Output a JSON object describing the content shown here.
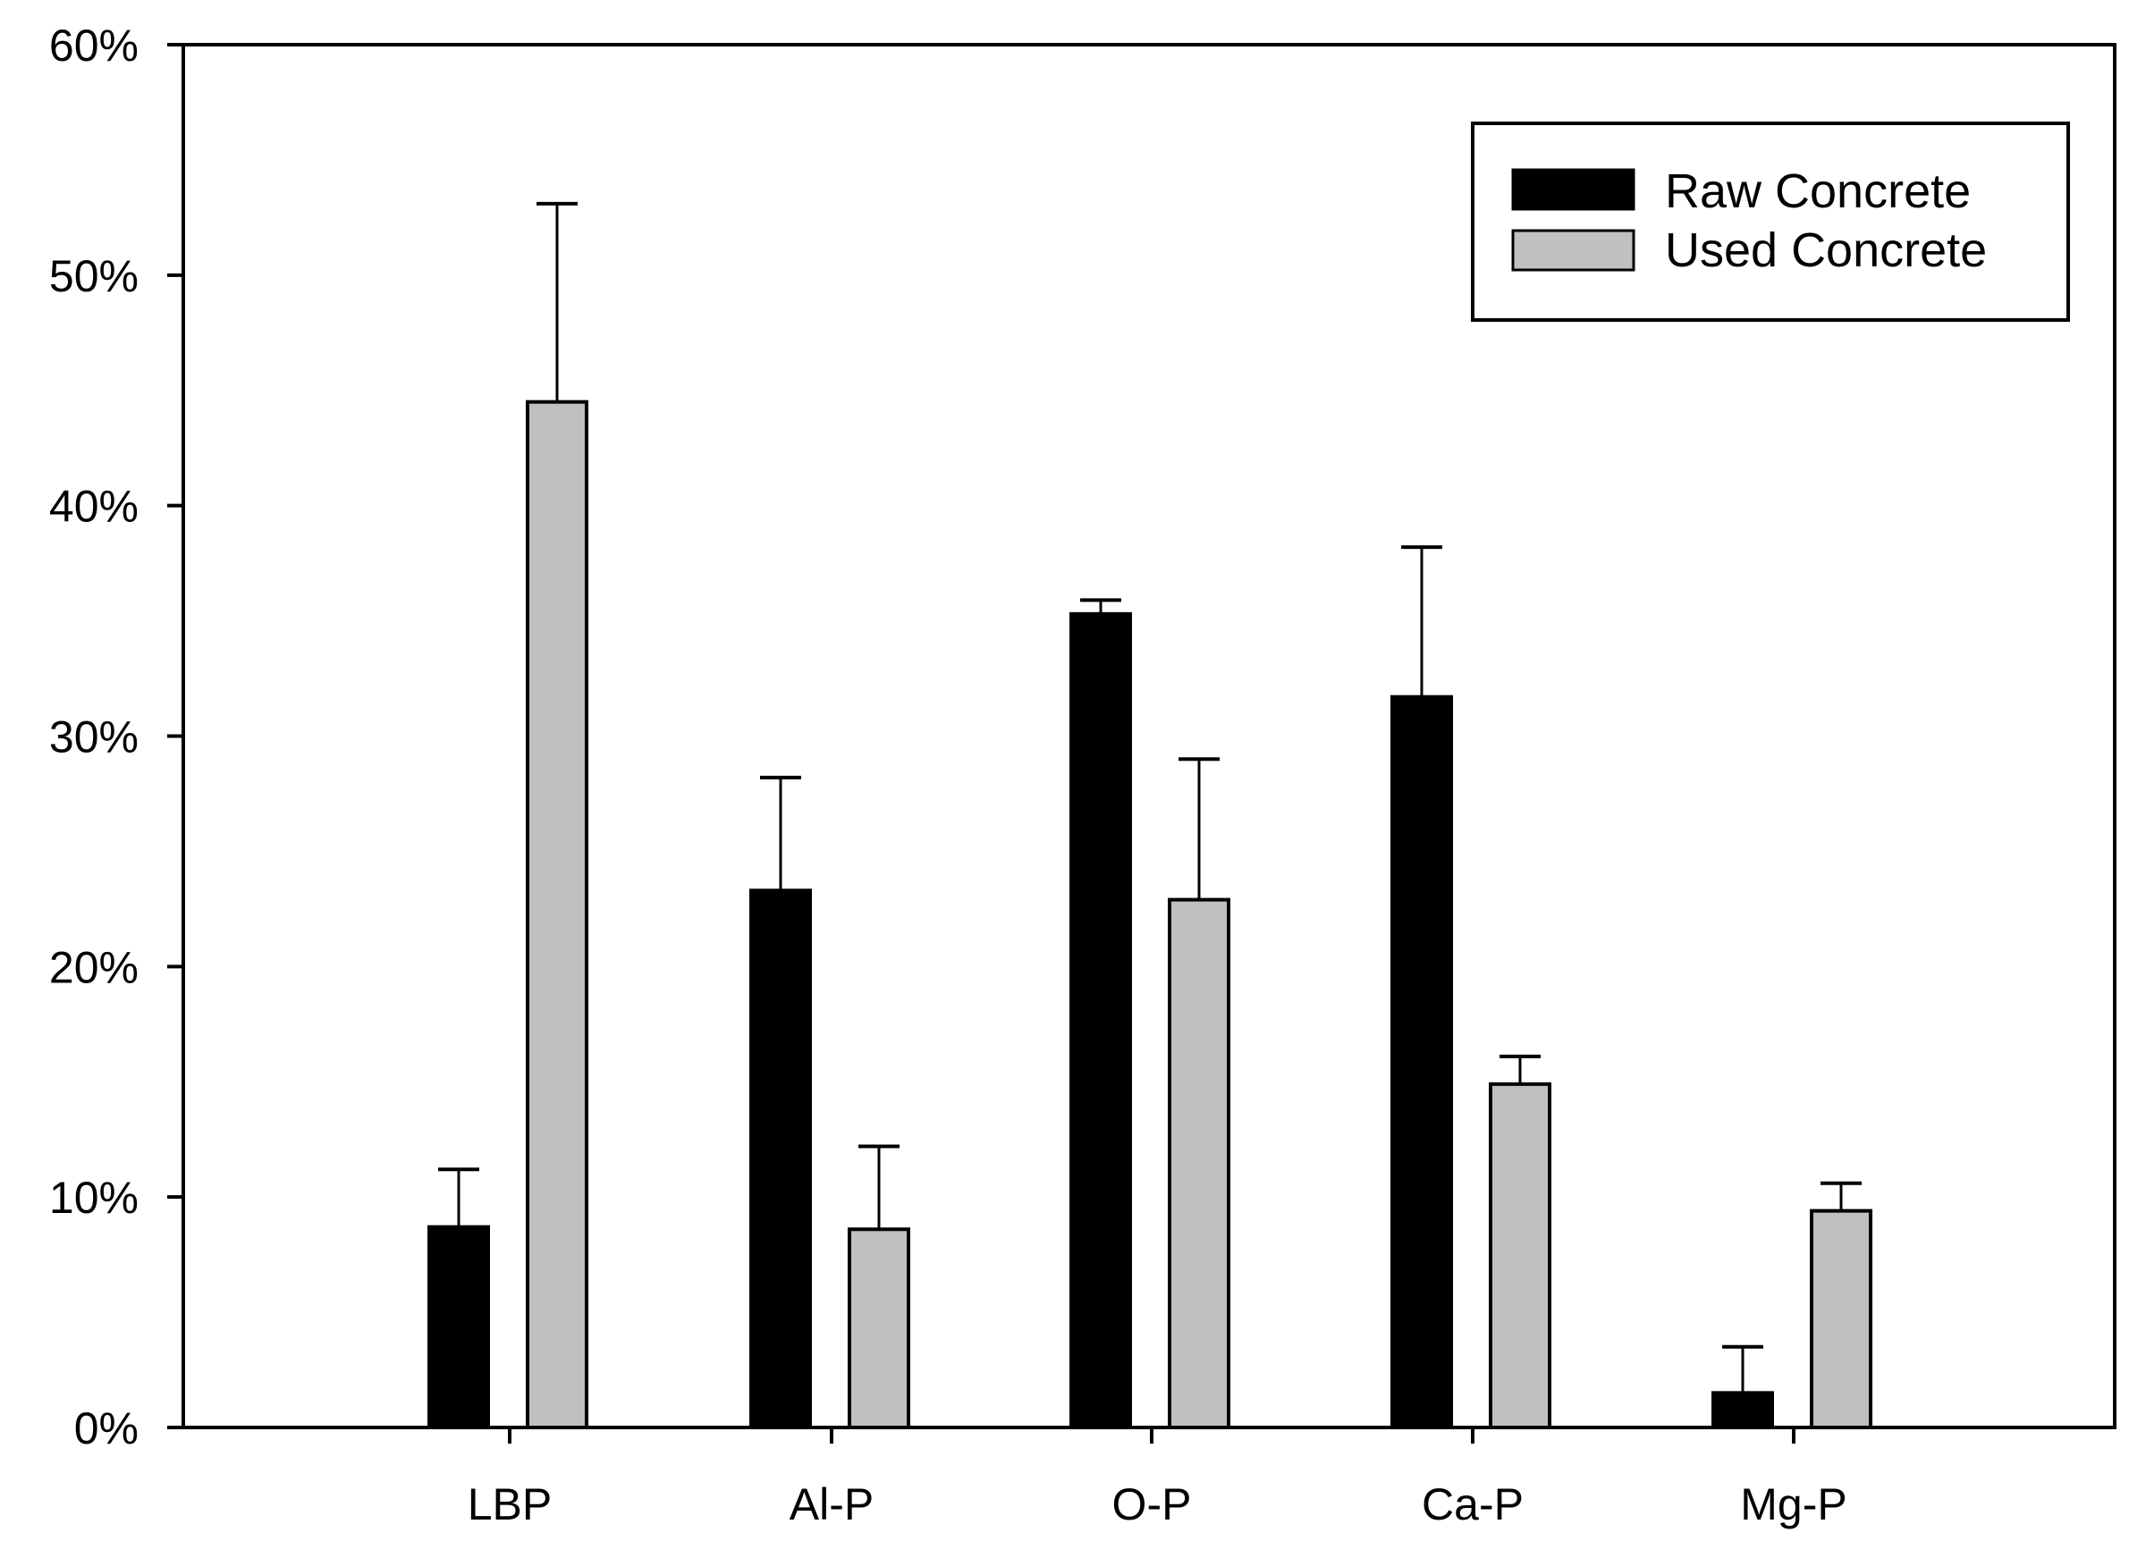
{
  "chart_data": {
    "type": "bar",
    "title": "",
    "xlabel": "",
    "ylabel": "",
    "categories": [
      "LBP",
      "Al-P",
      "O-P",
      "Ca-P",
      "Mg-P"
    ],
    "series": [
      {
        "name": "Raw Concrete",
        "color": "#000000",
        "values": [
          8.7,
          23.3,
          35.3,
          31.7,
          1.5
        ],
        "errors": [
          2.5,
          4.9,
          0.6,
          6.5,
          2.0
        ]
      },
      {
        "name": "Used Concrete",
        "color": "#c0c0c0",
        "values": [
          44.5,
          8.6,
          22.9,
          14.9,
          9.4
        ],
        "errors": [
          8.6,
          3.6,
          6.1,
          1.2,
          1.2
        ]
      }
    ],
    "ylim": [
      0,
      60
    ],
    "yticks": [
      0,
      10,
      20,
      30,
      40,
      50,
      60
    ],
    "ytick_labels": [
      "0%",
      "10%",
      "20%",
      "30%",
      "40%",
      "50%",
      "60%"
    ],
    "grid": false,
    "legend_position": "top-right"
  }
}
